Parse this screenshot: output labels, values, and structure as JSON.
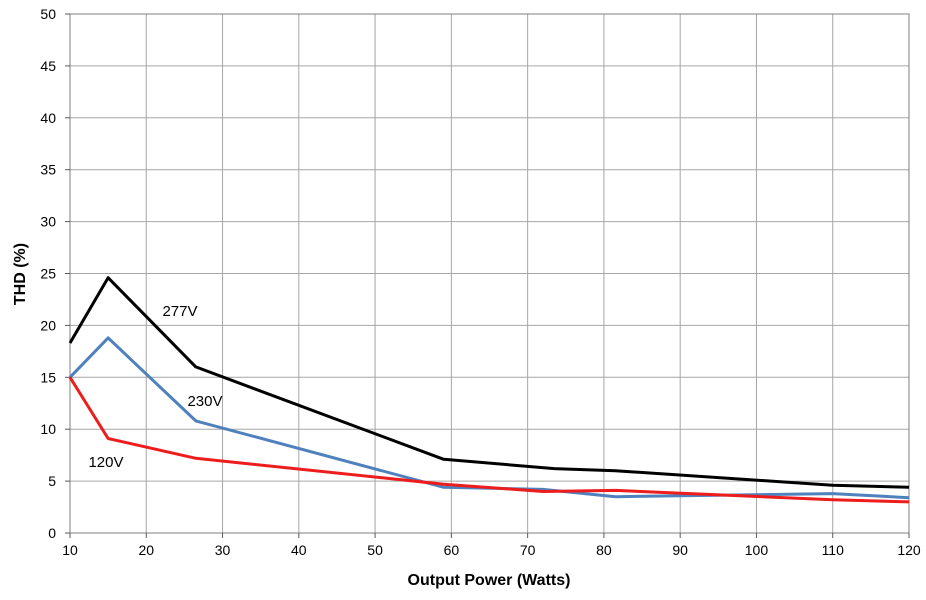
{
  "chart_data": {
    "type": "line",
    "title": "",
    "xlabel": "Output Power (Watts)",
    "ylabel": "THD (%)",
    "xlim": [
      10,
      120
    ],
    "ylim": [
      0,
      50
    ],
    "xticks": [
      "10",
      "20",
      "30",
      "40",
      "50",
      "60",
      "70",
      "80",
      "90",
      "100",
      "110",
      "120"
    ],
    "yticks": [
      "0",
      "5",
      "10",
      "15",
      "20",
      "25",
      "30",
      "35",
      "40",
      "45",
      "50"
    ],
    "grid": true,
    "legend": "none (inline series labels)",
    "series": [
      {
        "name": "277V",
        "color": "#000000",
        "x": [
          10,
          15,
          26.5,
          59,
          73.5,
          81.5,
          110,
          120
        ],
        "y": [
          18.3,
          24.6,
          16.0,
          7.1,
          6.2,
          6.0,
          4.6,
          4.4
        ]
      },
      {
        "name": "230V",
        "color": "#4f81bd",
        "x": [
          10,
          15,
          26.5,
          59,
          72,
          81.5,
          110,
          120
        ],
        "y": [
          15.0,
          18.8,
          10.8,
          4.4,
          4.2,
          3.5,
          3.8,
          3.4
        ]
      },
      {
        "name": "120V",
        "color": "#ee1c1c",
        "x": [
          10,
          15,
          26.5,
          59,
          72,
          81.5,
          110,
          120
        ],
        "y": [
          15.0,
          9.1,
          7.2,
          4.7,
          4.0,
          4.1,
          3.2,
          3.0
        ]
      }
    ]
  }
}
